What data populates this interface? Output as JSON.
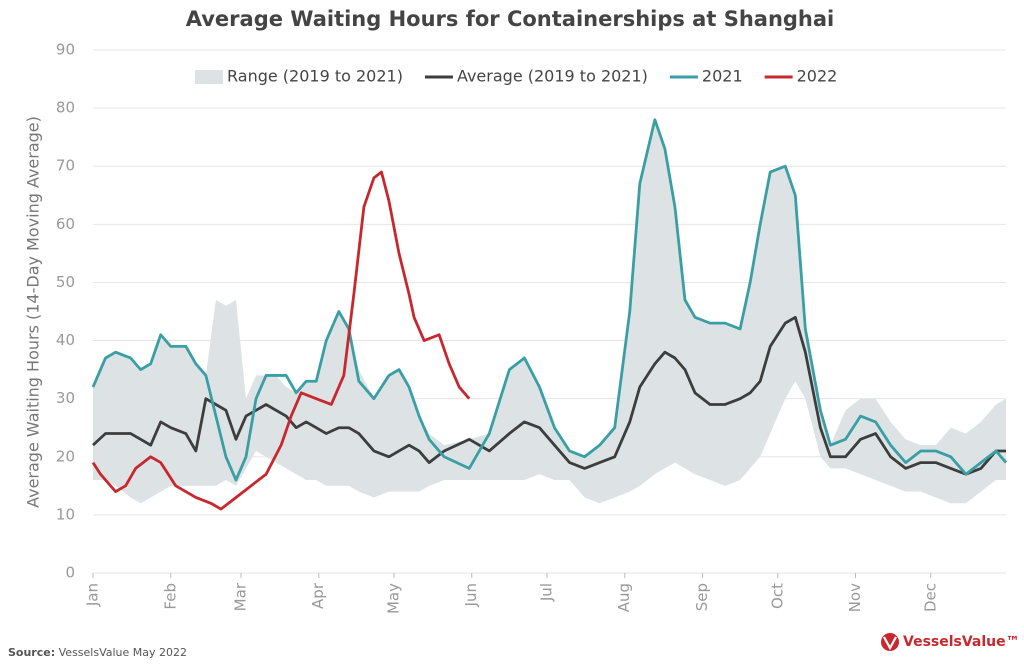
{
  "chart_data": {
    "type": "line",
    "title": "Average Waiting Hours for Containerships at Shanghai",
    "y_label": "Average Waiting Hours (14-Day Moving Average)",
    "source_label": "Source:",
    "source": "VesselsValue May 2022",
    "brand": "VesselsValue™",
    "xlim": [
      1,
      365
    ],
    "xticks": [
      {
        "value": 1,
        "label": "Jan"
      },
      {
        "value": 32,
        "label": "Feb"
      },
      {
        "value": 60,
        "label": "Mar"
      },
      {
        "value": 91,
        "label": "Apr"
      },
      {
        "value": 121,
        "label": "May"
      },
      {
        "value": 152,
        "label": "Jun"
      },
      {
        "value": 182,
        "label": "Jul"
      },
      {
        "value": 213,
        "label": "Aug"
      },
      {
        "value": 244,
        "label": "Sep"
      },
      {
        "value": 274,
        "label": "Oct"
      },
      {
        "value": 305,
        "label": "Nov"
      },
      {
        "value": 335,
        "label": "Dec"
      }
    ],
    "ylim": [
      0,
      90
    ],
    "yticks": [
      0,
      10,
      20,
      30,
      40,
      50,
      60,
      70,
      80,
      90
    ],
    "grid": true,
    "legend": "top",
    "x": [
      1,
      6,
      10,
      16,
      20,
      24,
      28,
      32,
      38,
      42,
      46,
      50,
      54,
      58,
      62,
      66,
      70,
      74,
      78,
      82,
      86,
      90,
      94,
      99,
      103,
      107,
      113,
      119,
      123,
      127,
      131,
      135,
      141,
      151,
      159,
      167,
      173,
      179,
      185,
      191,
      197,
      203,
      209,
      215,
      219,
      225,
      229,
      233,
      237,
      241,
      247,
      253,
      259,
      263,
      267,
      271,
      277,
      281,
      285,
      291,
      295,
      301,
      307,
      313,
      319,
      325,
      331,
      337,
      343,
      349,
      355,
      361,
      365
    ],
    "series": [
      {
        "name": "Range (2019 to 2021)",
        "kind": "range",
        "color": "#dde3e5",
        "low": [
          16,
          16,
          15,
          13,
          12,
          13,
          14,
          15,
          15,
          15,
          15,
          15,
          16,
          15,
          18,
          21,
          20,
          19,
          18,
          17,
          16,
          16,
          15,
          15,
          15,
          14,
          13,
          14,
          14,
          14,
          14,
          15,
          16,
          16,
          16,
          16,
          16,
          17,
          16,
          16,
          13,
          12,
          13,
          14,
          15,
          17,
          18,
          19,
          18,
          17,
          16,
          15,
          16,
          18,
          20,
          24,
          30,
          33,
          30,
          20,
          18,
          18,
          17,
          16,
          15,
          14,
          14,
          13,
          12,
          12,
          14,
          16,
          16
        ],
        "high": [
          32,
          37,
          38,
          37,
          35,
          36,
          41,
          39,
          39,
          36,
          34,
          47,
          46,
          47,
          30,
          34,
          34,
          34,
          32,
          31,
          33,
          33,
          40,
          45,
          42,
          35,
          30,
          34,
          35,
          32,
          27,
          24,
          22,
          23,
          24,
          35,
          37,
          32,
          25,
          21,
          20,
          22,
          25,
          45,
          67,
          78,
          73,
          63,
          47,
          44,
          43,
          43,
          42,
          50,
          60,
          69,
          70,
          65,
          42,
          28,
          22,
          28,
          30,
          30,
          26,
          23,
          22,
          22,
          25,
          24,
          26,
          29,
          30
        ]
      },
      {
        "name": "Average (2019 to 2021)",
        "kind": "line",
        "color": "#3d3d3d",
        "values": [
          22,
          24,
          24,
          24,
          23,
          22,
          26,
          25,
          24,
          21,
          30,
          29,
          28,
          23,
          27,
          28,
          29,
          28,
          27,
          25,
          26,
          25,
          24,
          25,
          25,
          24,
          21,
          20,
          21,
          22,
          21,
          19,
          21,
          23,
          21,
          24,
          26,
          25,
          22,
          19,
          18,
          19,
          20,
          26,
          32,
          36,
          38,
          37,
          35,
          31,
          29,
          29,
          30,
          31,
          33,
          39,
          43,
          44,
          38,
          25,
          20,
          20,
          23,
          24,
          20,
          18,
          19,
          19,
          18,
          17,
          18,
          21,
          21
        ]
      },
      {
        "name": "2021",
        "kind": "line",
        "color": "#3a9fa5",
        "values": [
          32,
          37,
          38,
          37,
          35,
          36,
          41,
          39,
          39,
          36,
          34,
          27,
          20,
          16,
          20,
          30,
          34,
          34,
          34,
          31,
          33,
          33,
          40,
          45,
          42,
          33,
          30,
          34,
          35,
          32,
          27,
          23,
          20,
          18,
          24,
          35,
          37,
          32,
          25,
          21,
          20,
          22,
          25,
          45,
          67,
          78,
          73,
          63,
          47,
          44,
          43,
          43,
          42,
          50,
          60,
          69,
          70,
          65,
          42,
          28,
          22,
          23,
          27,
          26,
          22,
          19,
          21,
          21,
          20,
          17,
          19,
          21,
          19
        ]
      },
      {
        "name": "2022",
        "kind": "line",
        "color": "#c8282d",
        "x": [
          1,
          4,
          10,
          14,
          18,
          24,
          28,
          34,
          42,
          48,
          52,
          58,
          64,
          70,
          76,
          80,
          84,
          90,
          96,
          101,
          105,
          109,
          113,
          116,
          119,
          123,
          127,
          129,
          133,
          139,
          143,
          147,
          151
        ],
        "values": [
          19,
          17,
          14,
          15,
          18,
          20,
          19,
          15,
          13,
          12,
          11,
          13,
          15,
          17,
          22,
          27,
          31,
          30,
          29,
          34,
          48,
          63,
          68,
          69,
          64,
          55,
          48,
          44,
          40,
          41,
          36,
          32,
          30
        ]
      }
    ]
  }
}
